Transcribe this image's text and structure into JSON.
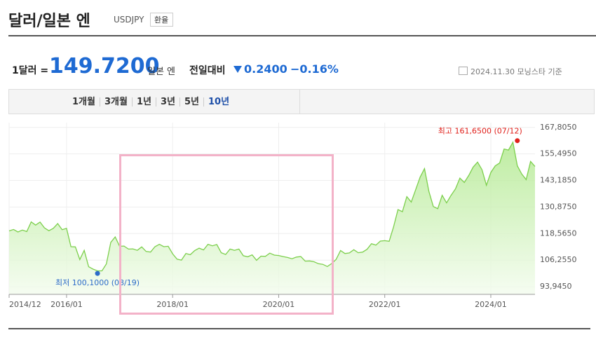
{
  "header": {
    "title": "달러/일본 엔",
    "code": "USDJPY",
    "button": "환율"
  },
  "quote": {
    "unit_label": "1달러 =",
    "price": "149.7200",
    "currency": "일본 엔",
    "change_label": "전일대비",
    "change": "0.2400",
    "change_pct": "−0.16%",
    "date": "2024.11.30",
    "source": "모닝스타 기준"
  },
  "tabs": [
    "1개월",
    "3개월",
    "1년",
    "3년",
    "5년",
    "10년"
  ],
  "chart_data": {
    "type": "area",
    "x": [
      "2014/12",
      "2015/01",
      "2015/02",
      "2015/03",
      "2015/04",
      "2015/05",
      "2015/06",
      "2015/07",
      "2015/08",
      "2015/09",
      "2015/10",
      "2015/11",
      "2015/12",
      "2016/01",
      "2016/02",
      "2016/03",
      "2016/04",
      "2016/05",
      "2016/06",
      "2016/07",
      "2016/08",
      "2016/09",
      "2016/10",
      "2016/11",
      "2016/12",
      "2017/01",
      "2017/02",
      "2017/03",
      "2017/04",
      "2017/05",
      "2017/06",
      "2017/07",
      "2017/08",
      "2017/09",
      "2017/10",
      "2017/11",
      "2017/12",
      "2018/01",
      "2018/02",
      "2018/03",
      "2018/04",
      "2018/05",
      "2018/06",
      "2018/07",
      "2018/08",
      "2018/09",
      "2018/10",
      "2018/11",
      "2018/12",
      "2019/01",
      "2019/02",
      "2019/03",
      "2019/04",
      "2019/05",
      "2019/06",
      "2019/07",
      "2019/08",
      "2019/09",
      "2019/10",
      "2019/11",
      "2019/12",
      "2020/01",
      "2020/02",
      "2020/03",
      "2020/04",
      "2020/05",
      "2020/06",
      "2020/07",
      "2020/08",
      "2020/09",
      "2020/10",
      "2020/11",
      "2020/12",
      "2021/01",
      "2021/02",
      "2021/03",
      "2021/04",
      "2021/05",
      "2021/06",
      "2021/07",
      "2021/08",
      "2021/09",
      "2021/10",
      "2021/11",
      "2021/12",
      "2022/01",
      "2022/02",
      "2022/03",
      "2022/04",
      "2022/05",
      "2022/06",
      "2022/07",
      "2022/08",
      "2022/09",
      "2022/10",
      "2022/11",
      "2022/12",
      "2023/01",
      "2023/02",
      "2023/03",
      "2023/04",
      "2023/05",
      "2023/06",
      "2023/07",
      "2023/08",
      "2023/09",
      "2023/10",
      "2023/11",
      "2023/12",
      "2024/01",
      "2024/02",
      "2024/03",
      "2024/04",
      "2024/05",
      "2024/06",
      "2024/07",
      "2024/08",
      "2024/09",
      "2024/10",
      "2024/11"
    ],
    "values": [
      119.8,
      120.5,
      119.3,
      120.2,
      119.5,
      124.0,
      122.5,
      123.9,
      121.2,
      119.9,
      121.0,
      123.2,
      120.4,
      121.0,
      112.5,
      112.4,
      106.5,
      110.8,
      103.2,
      102.1,
      101.3,
      101.3,
      104.5,
      114.5,
      117.0,
      112.7,
      112.8,
      111.4,
      111.5,
      110.8,
      112.4,
      110.3,
      110.0,
      112.5,
      113.6,
      112.5,
      112.7,
      109.2,
      106.7,
      106.3,
      109.3,
      108.8,
      110.7,
      111.8,
      111.0,
      113.6,
      112.9,
      113.5,
      109.7,
      108.9,
      111.4,
      110.8,
      111.4,
      108.3,
      107.8,
      108.7,
      106.2,
      108.1,
      108.0,
      109.5,
      108.6,
      108.4,
      107.9,
      107.5,
      106.9,
      107.7,
      107.9,
      105.8,
      105.9,
      105.5,
      104.6,
      104.3,
      103.3,
      104.7,
      106.6,
      110.7,
      109.3,
      109.6,
      111.1,
      109.7,
      110.0,
      111.3,
      113.9,
      113.2,
      115.1,
      115.3,
      115.0,
      121.7,
      129.7,
      128.7,
      135.7,
      133.2,
      138.9,
      144.7,
      148.7,
      138.1,
      131.1,
      130.1,
      136.3,
      132.8,
      136.3,
      139.3,
      144.3,
      142.3,
      145.5,
      149.4,
      151.7,
      148.2,
      141.0,
      146.9,
      150.0,
      151.3,
      157.8,
      157.3,
      160.9,
      150.0,
      146.2,
      143.6,
      152.0,
      149.7
    ],
    "color": "#7ccf4c",
    "xticks": [
      "2014/12",
      "2016/01",
      "2018/01",
      "2020/01",
      "2022/01",
      "2024/01"
    ],
    "ylim": [
      90.4,
      170
    ],
    "yticks": [
      {
        "value": 93.945,
        "label": "93,9450"
      },
      {
        "value": 106.255,
        "label": "106,2550"
      },
      {
        "value": 118.565,
        "label": "118,5650"
      },
      {
        "value": 130.875,
        "label": "130,8750"
      },
      {
        "value": 143.185,
        "label": "143,1850"
      },
      {
        "value": 155.495,
        "label": "155,4950"
      },
      {
        "value": 167.805,
        "label": "167,8050"
      }
    ],
    "grid": true,
    "annotations": [
      {
        "text": "최고 161,6500 (07/12)",
        "x": "2024/07",
        "value": 161.65,
        "color": "#e0201b"
      },
      {
        "text": "최저 100,1000 (08/19)",
        "x": "2016/08",
        "value": 100.1,
        "color": "#2d6bc9"
      }
    ]
  }
}
